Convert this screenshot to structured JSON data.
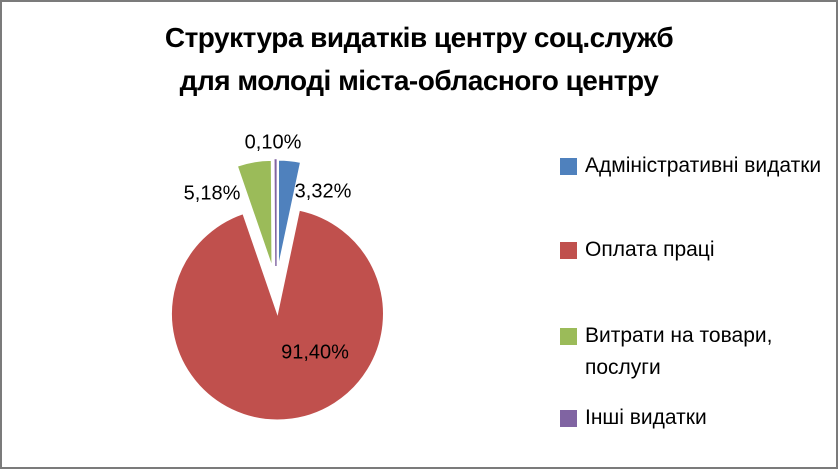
{
  "title": "Структура видатків центру соц.служб\nдля молоді міста-обласного центру",
  "chart_data": {
    "type": "pie",
    "title": "Структура видатків центру соц.служб для молоді міста-обласного центру",
    "legend_position": "right",
    "start_angle_deg": 0,
    "direction": "clockwise",
    "exploded": true,
    "value_unit": "%",
    "slices": [
      {
        "name": "Адміністративні видатки",
        "value": 3.32,
        "label": "3,32%",
        "color": "#4F81BD"
      },
      {
        "name": "Оплата праці",
        "value": 91.4,
        "label": "91,40%",
        "color": "#C0504D"
      },
      {
        "name": "Витрати на товари, послуги",
        "value": 5.18,
        "label": "5,18%",
        "color": "#9BBB59"
      },
      {
        "name": "Інші видатки",
        "value": 0.1,
        "label": "0,10%",
        "color": "#8064A2"
      }
    ]
  }
}
